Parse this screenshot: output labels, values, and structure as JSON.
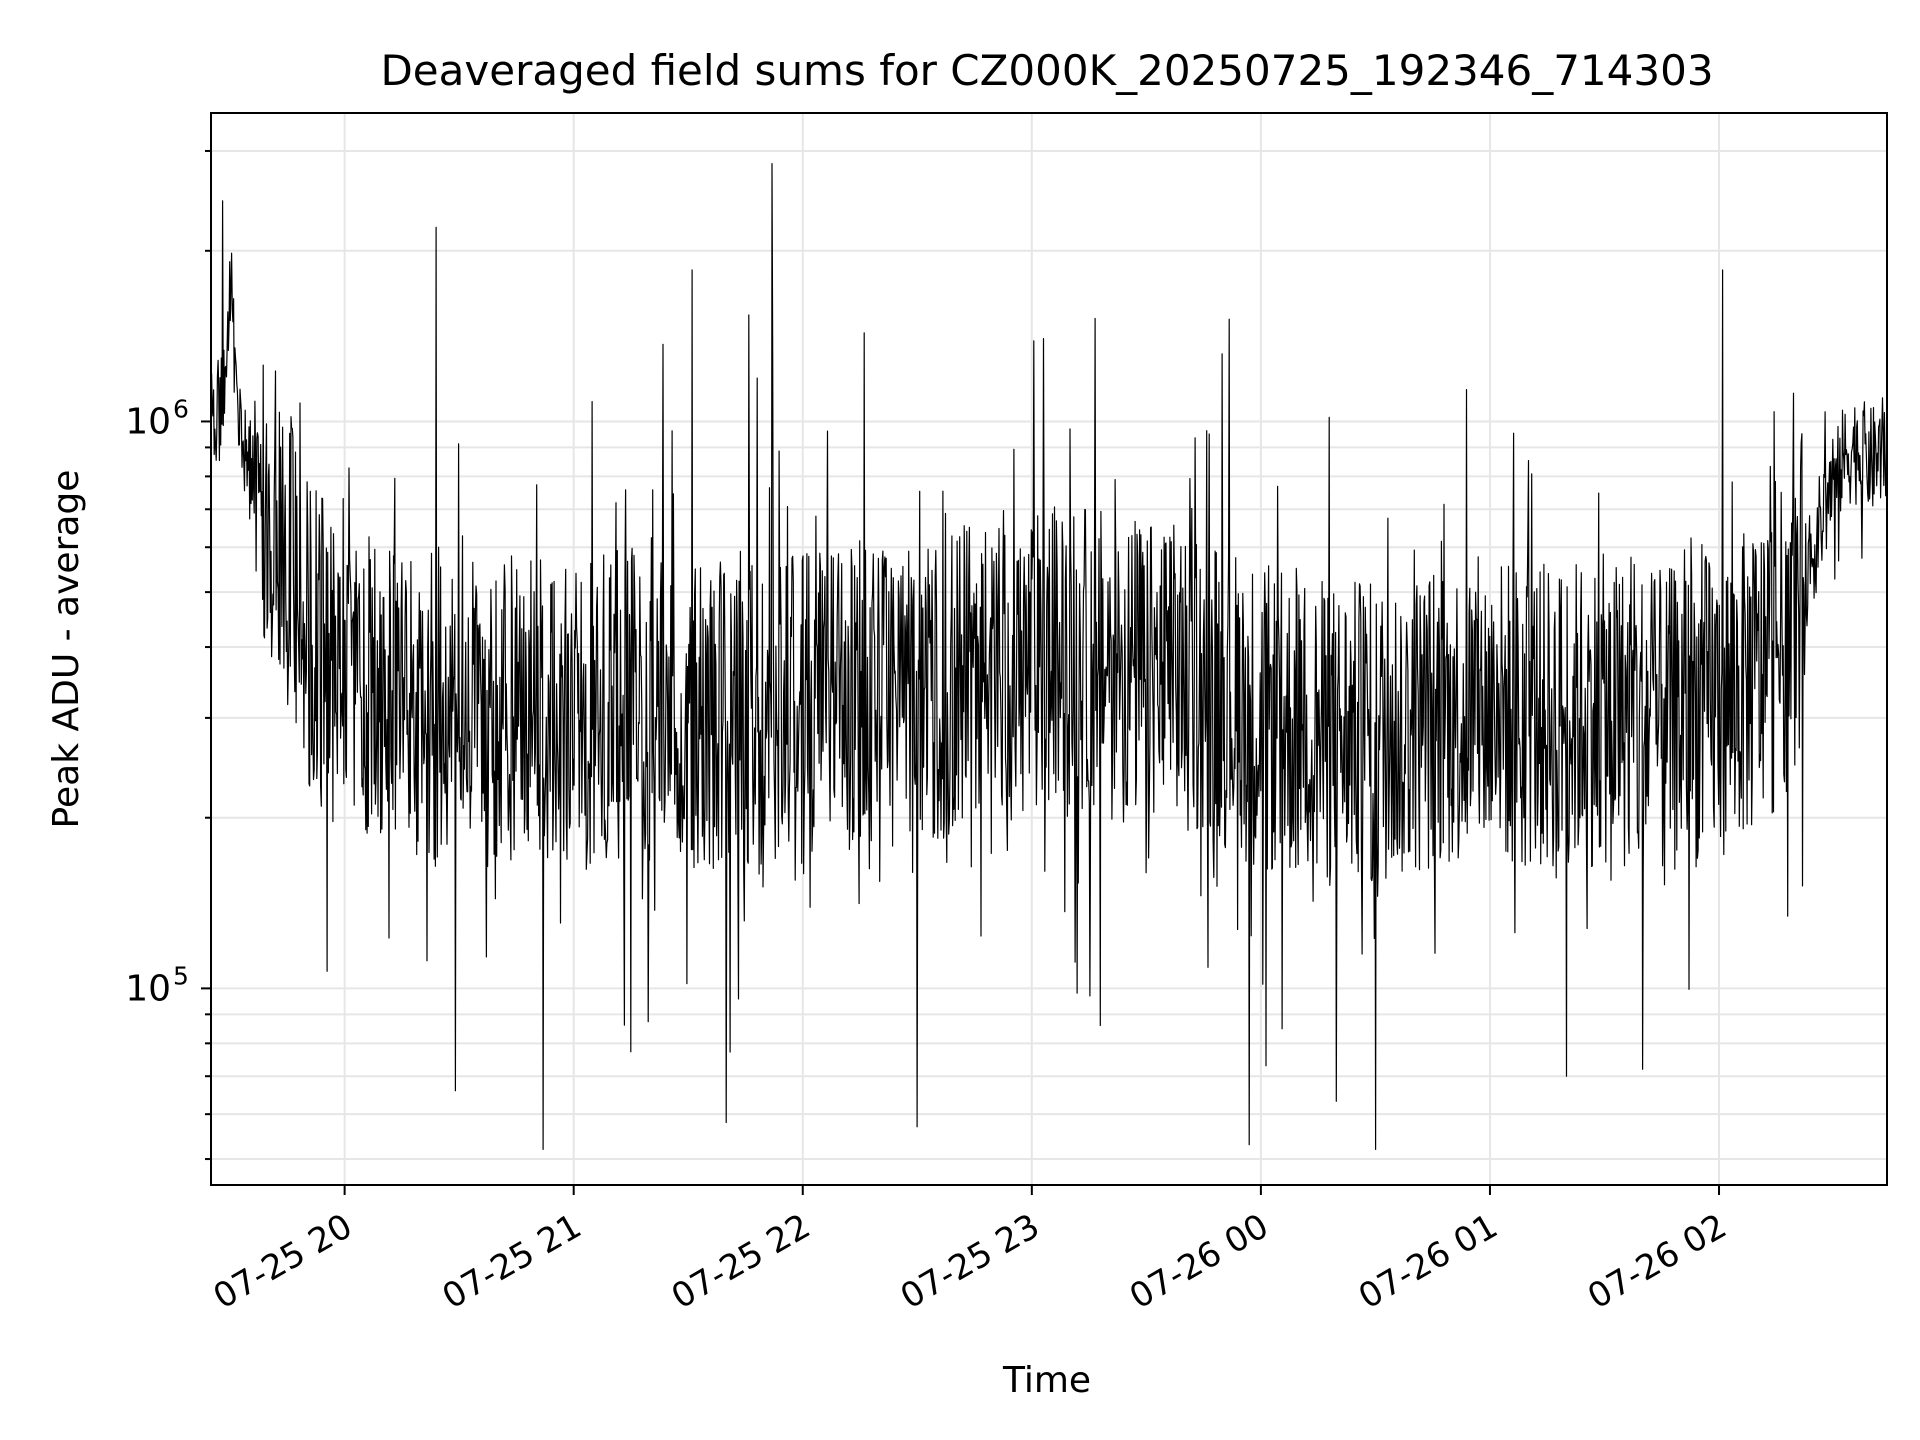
{
  "chart_data": {
    "type": "line",
    "title": "Deaveraged field sums for CZ000K_20250725_192346_714303",
    "xlabel": "Time",
    "ylabel": "Peak ADU - average",
    "yscale": "log",
    "ylim": [
      45000,
      3500000
    ],
    "xlim": [
      "2025-07-25T19:25",
      "2025-07-26T02:44"
    ],
    "grid": true,
    "line_color": "#000000",
    "grid_color": "#e6e6e6",
    "x_ticks": [
      {
        "label": "07-25 20",
        "value": "2025-07-25T20:00"
      },
      {
        "label": "07-25 21",
        "value": "2025-07-25T21:00"
      },
      {
        "label": "07-25 22",
        "value": "2025-07-25T22:00"
      },
      {
        "label": "07-25 23",
        "value": "2025-07-25T23:00"
      },
      {
        "label": "07-26 00",
        "value": "2025-07-26T00:00"
      },
      {
        "label": "07-26 01",
        "value": "2025-07-26T01:00"
      },
      {
        "label": "07-26 02",
        "value": "2025-07-26T02:00"
      }
    ],
    "y_ticks": [
      {
        "base": "10",
        "exp": "5",
        "value": 100000
      },
      {
        "base": "10",
        "exp": "6",
        "value": 1000000
      }
    ],
    "series": [
      {
        "x": [
          "2025-07-25T19:25",
          "2025-07-25T19:28",
          "2025-07-25T19:30",
          "2025-07-25T19:33",
          "2025-07-25T19:36",
          "2025-07-25T19:40",
          "2025-07-25T19:45",
          "2025-07-25T19:50",
          "2025-07-25T20:00",
          "2025-07-25T20:15",
          "2025-07-25T20:30",
          "2025-07-25T20:45",
          "2025-07-25T21:00",
          "2025-07-25T21:15",
          "2025-07-25T21:30",
          "2025-07-25T21:45",
          "2025-07-25T22:00",
          "2025-07-25T22:15",
          "2025-07-25T22:30",
          "2025-07-25T22:45",
          "2025-07-25T23:00",
          "2025-07-25T23:15",
          "2025-07-25T23:30",
          "2025-07-25T23:45",
          "2025-07-26T00:00",
          "2025-07-26T00:15",
          "2025-07-26T00:30",
          "2025-07-26T00:45",
          "2025-07-26T01:00",
          "2025-07-26T01:15",
          "2025-07-26T01:30",
          "2025-07-26T01:45",
          "2025-07-26T02:00",
          "2025-07-26T02:10",
          "2025-07-26T02:18",
          "2025-07-26T02:25",
          "2025-07-26T02:30",
          "2025-07-26T02:35",
          "2025-07-26T02:40",
          "2025-07-26T02:44"
        ],
        "y": [
          950000,
          1100000,
          1800000,
          900000,
          800000,
          700000,
          600000,
          420000,
          350000,
          320000,
          300000,
          310000,
          300000,
          320000,
          310000,
          300000,
          310000,
          330000,
          340000,
          350000,
          370000,
          380000,
          360000,
          350000,
          300000,
          280000,
          280000,
          300000,
          310000,
          300000,
          310000,
          290000,
          320000,
          350000,
          420000,
          600000,
          800000,
          900000,
          850000,
          900000
        ]
      }
    ],
    "spikes": [
      {
        "x": "2025-07-25T19:28",
        "y": 2450000
      },
      {
        "x": "2025-07-25T20:24",
        "y": 2200000
      },
      {
        "x": "2025-07-25T21:31",
        "y": 1850000
      },
      {
        "x": "2025-07-25T21:52",
        "y": 2850000
      },
      {
        "x": "2025-07-25T21:52",
        "y": 1300000
      },
      {
        "x": "2025-07-25T23:03",
        "y": 1400000
      },
      {
        "x": "2025-07-26T02:01",
        "y": 1850000
      },
      {
        "x": "2025-07-25T20:52",
        "y": 52000
      },
      {
        "x": "2025-07-25T21:40",
        "y": 58000
      },
      {
        "x": "2025-07-25T22:30",
        "y": 57000
      },
      {
        "x": "2025-07-25T23:57",
        "y": 53000
      },
      {
        "x": "2025-07-26T00:30",
        "y": 52000
      },
      {
        "x": "2025-07-25T20:29",
        "y": 66000
      },
      {
        "x": "2025-07-26T01:20",
        "y": 70000
      },
      {
        "x": "2025-07-26T01:40",
        "y": 72000
      }
    ]
  }
}
